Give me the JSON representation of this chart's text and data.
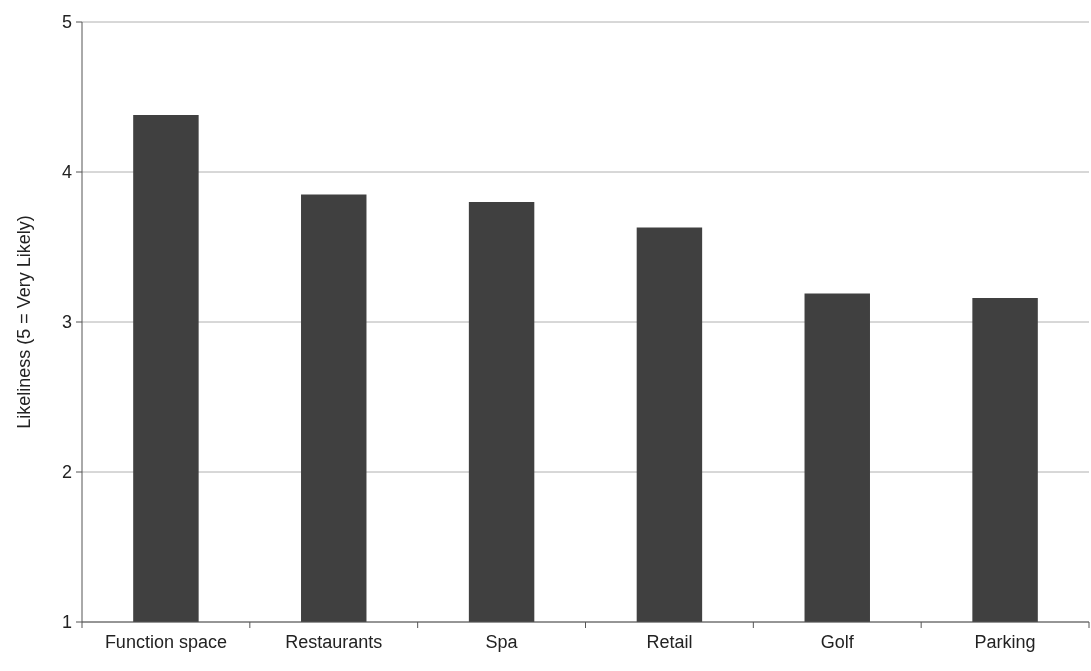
{
  "chart_data": {
    "type": "bar",
    "ylabel": "Likeliness (5 = Very Likely)",
    "categories": [
      "Function space",
      "Restaurants",
      "Spa",
      "Retail",
      "Golf",
      "Parking"
    ],
    "values": [
      4.38,
      3.85,
      3.8,
      3.63,
      3.19,
      3.16
    ],
    "color": "#404040",
    "ylim": [
      1,
      5
    ],
    "yticks": [
      1,
      2,
      3,
      4,
      5
    ],
    "grid": "y"
  }
}
